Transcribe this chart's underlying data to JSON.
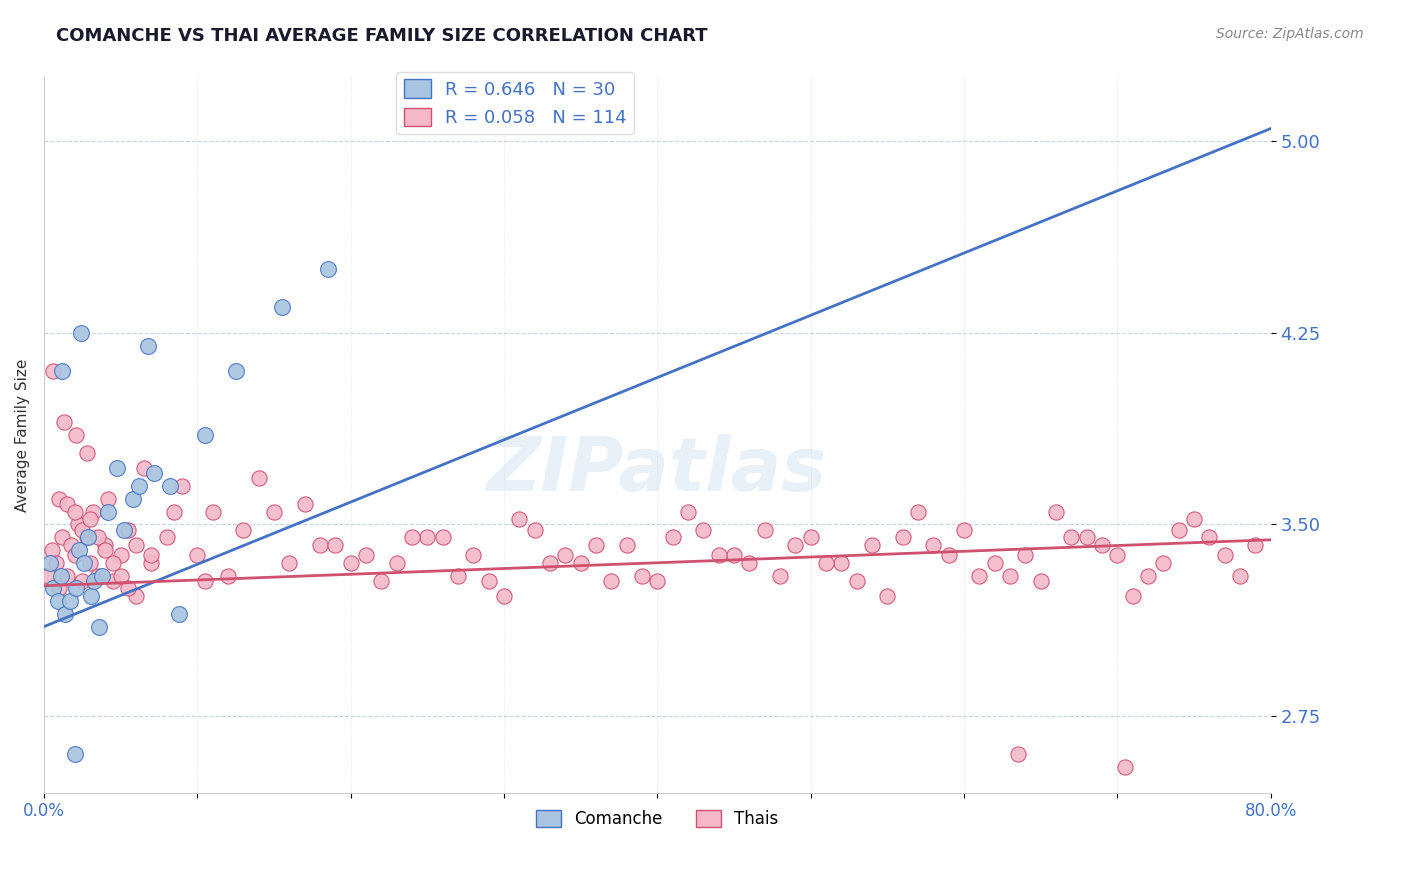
{
  "title": "COMANCHE VS THAI AVERAGE FAMILY SIZE CORRELATION CHART",
  "source": "Source: ZipAtlas.com",
  "ylabel": "Average Family Size",
  "xlim": [
    0.0,
    80.0
  ],
  "ylim": [
    2.45,
    5.25
  ],
  "yticks": [
    2.75,
    3.5,
    4.25,
    5.0
  ],
  "xticks": [
    0.0,
    10.0,
    20.0,
    30.0,
    40.0,
    50.0,
    60.0,
    70.0,
    80.0
  ],
  "comanche_R": 0.646,
  "comanche_N": 30,
  "thai_R": 0.058,
  "thai_N": 114,
  "comanche_color": "#a8c4e0",
  "comanche_line_color": "#4472c4",
  "thai_color": "#f4b8c8",
  "thai_line_color": "#d05070",
  "blue_line_start": 3.1,
  "blue_line_end": 5.05,
  "pink_line_start": 3.26,
  "pink_line_end": 3.44,
  "comanche_x": [
    0.4,
    0.6,
    0.9,
    1.1,
    1.4,
    1.7,
    2.1,
    2.3,
    2.6,
    2.9,
    3.1,
    3.3,
    3.8,
    4.2,
    4.8,
    5.2,
    5.8,
    6.2,
    7.2,
    8.2,
    10.5,
    12.5,
    15.5,
    6.8,
    2.4,
    1.2,
    3.6,
    2.0,
    18.5,
    8.8
  ],
  "comanche_y": [
    3.35,
    3.25,
    3.2,
    3.3,
    3.15,
    3.2,
    3.25,
    3.4,
    3.35,
    3.45,
    3.22,
    3.28,
    3.3,
    3.55,
    3.72,
    3.48,
    3.6,
    3.65,
    3.7,
    3.65,
    3.85,
    4.1,
    4.35,
    4.2,
    4.25,
    4.1,
    3.1,
    2.6,
    4.5,
    3.15
  ],
  "thai_x": [
    0.3,
    0.5,
    0.8,
    1.0,
    1.2,
    1.5,
    1.8,
    2.0,
    2.2,
    2.5,
    2.8,
    3.0,
    3.2,
    3.5,
    4.0,
    4.5,
    5.0,
    5.5,
    6.0,
    7.0,
    8.0,
    10.0,
    12.0,
    15.0,
    18.0,
    20.0,
    22.0,
    25.0,
    28.0,
    30.0,
    32.0,
    35.0,
    38.0,
    40.0,
    42.0,
    45.0,
    48.0,
    50.0,
    52.0,
    55.0,
    58.0,
    60.0,
    62.0,
    65.0,
    68.0,
    70.0,
    72.0,
    75.0,
    1.0,
    1.5,
    2.0,
    2.5,
    3.0,
    3.5,
    4.0,
    4.5,
    5.0,
    5.5,
    6.0,
    7.0,
    8.5,
    10.5,
    13.0,
    16.0,
    19.0,
    21.0,
    24.0,
    27.0,
    31.0,
    33.0,
    37.0,
    41.0,
    44.0,
    47.0,
    51.0,
    54.0,
    57.0,
    61.0,
    64.0,
    67.0,
    0.6,
    1.3,
    2.1,
    2.8,
    4.2,
    6.5,
    9.0,
    11.0,
    14.0,
    17.0,
    23.0,
    26.0,
    29.0,
    34.0,
    36.0,
    39.0,
    43.0,
    46.0,
    49.0,
    53.0,
    56.0,
    59.0,
    63.0,
    66.0,
    69.0,
    71.0,
    73.0,
    74.0,
    76.0,
    77.0,
    78.0,
    79.0,
    70.5,
    63.5
  ],
  "thai_y": [
    3.3,
    3.4,
    3.35,
    3.25,
    3.45,
    3.3,
    3.42,
    3.38,
    3.5,
    3.28,
    3.45,
    3.35,
    3.55,
    3.3,
    3.42,
    3.28,
    3.38,
    3.48,
    3.22,
    3.35,
    3.45,
    3.38,
    3.3,
    3.55,
    3.42,
    3.35,
    3.28,
    3.45,
    3.38,
    3.22,
    3.48,
    3.35,
    3.42,
    3.28,
    3.55,
    3.38,
    3.3,
    3.45,
    3.35,
    3.22,
    3.42,
    3.48,
    3.35,
    3.28,
    3.45,
    3.38,
    3.3,
    3.52,
    3.6,
    3.58,
    3.55,
    3.48,
    3.52,
    3.45,
    3.4,
    3.35,
    3.3,
    3.25,
    3.42,
    3.38,
    3.55,
    3.28,
    3.48,
    3.35,
    3.42,
    3.38,
    3.45,
    3.3,
    3.52,
    3.35,
    3.28,
    3.45,
    3.38,
    3.48,
    3.35,
    3.42,
    3.55,
    3.3,
    3.38,
    3.45,
    4.1,
    3.9,
    3.85,
    3.78,
    3.6,
    3.72,
    3.65,
    3.55,
    3.68,
    3.58,
    3.35,
    3.45,
    3.28,
    3.38,
    3.42,
    3.3,
    3.48,
    3.35,
    3.42,
    3.28,
    3.45,
    3.38,
    3.3,
    3.55,
    3.42,
    3.22,
    3.35,
    3.48,
    3.45,
    3.38,
    3.3,
    3.42,
    2.55,
    2.6
  ]
}
